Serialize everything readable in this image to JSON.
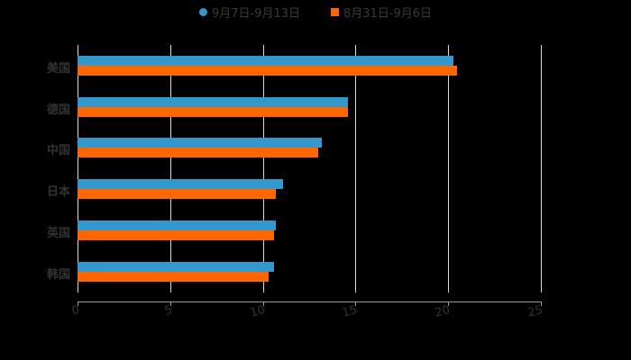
{
  "chart_data": {
    "type": "bar",
    "orientation": "horizontal",
    "title": "",
    "xlabel": "",
    "ylabel": "",
    "categories": [
      "美国",
      "德国",
      "中国",
      "日本",
      "英国",
      "韩国"
    ],
    "series": [
      {
        "name": "9月7日-9月13日",
        "color": "#3399cc",
        "marker": "circle",
        "values": [
          20.3,
          14.6,
          13.2,
          11.1,
          10.7,
          10.6
        ]
      },
      {
        "name": "8月31日-9月6日",
        "color": "#ff6600",
        "marker": "square",
        "values": [
          20.5,
          14.6,
          13.0,
          10.7,
          10.6,
          10.3
        ]
      }
    ],
    "xlim": [
      0,
      25
    ],
    "xticks": [
      "0",
      "5",
      "10",
      "15",
      "20",
      "25"
    ],
    "grid": true,
    "legend_position": "top"
  },
  "legend": [
    {
      "label": "9月7日-9月13日",
      "color": "#3399cc"
    },
    {
      "label": "8月31日-9月6日",
      "color": "#ff6600"
    }
  ]
}
